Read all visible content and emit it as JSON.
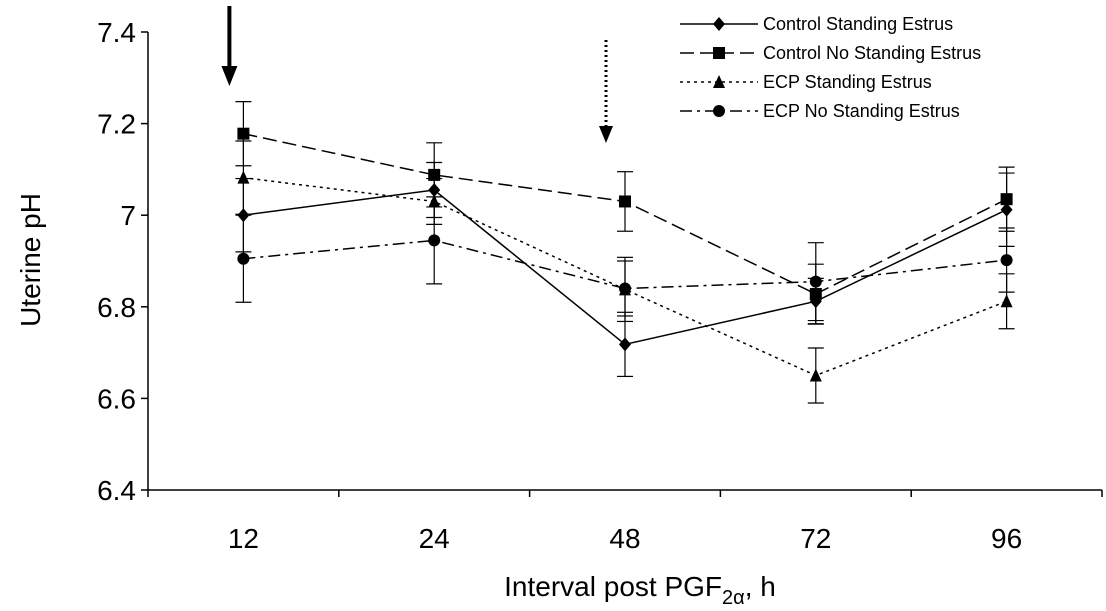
{
  "chart_data": {
    "type": "line",
    "title": "",
    "xlabel_main": "Interval post PGF",
    "xlabel_sub": "2α",
    "xlabel_tail": ", h",
    "ylabel": "Uterine pH",
    "categories": [
      "12",
      "24",
      "48",
      "72",
      "96"
    ],
    "ylim": [
      6.4,
      7.4
    ],
    "yticks": [
      "6.4",
      "6.6",
      "6.8",
      "7",
      "7.2",
      "7.4"
    ],
    "legend_position": "top-right",
    "grid": false,
    "arrows": {
      "solid_at": "12",
      "dotted_at": "48"
    },
    "series": [
      {
        "name": "Control Standing Estrus",
        "marker": "diamond",
        "dash": "solid",
        "values": [
          7.0,
          7.055,
          6.718,
          6.812,
          7.012
        ],
        "errors": [
          0.08,
          0.06,
          0.07,
          0.05,
          0.08
        ]
      },
      {
        "name": "Control No Standing Estrus",
        "marker": "square",
        "dash": "dashed",
        "values": [
          7.178,
          7.088,
          7.03,
          6.828,
          7.035
        ],
        "errors": [
          0.07,
          0.07,
          0.065,
          0.065,
          0.07
        ]
      },
      {
        "name": "ECP Standing Estrus",
        "marker": "triangle",
        "dash": "dotted",
        "values": [
          7.082,
          7.03,
          6.838,
          6.65,
          6.812
        ],
        "errors": [
          0.08,
          0.05,
          0.07,
          0.06,
          0.06
        ]
      },
      {
        "name": "ECP No Standing Estrus",
        "marker": "circle",
        "dash": "dashdot",
        "values": [
          6.905,
          6.945,
          6.84,
          6.855,
          6.902
        ],
        "errors": [
          0.095,
          0.095,
          0.06,
          0.085,
          0.07
        ]
      }
    ]
  }
}
